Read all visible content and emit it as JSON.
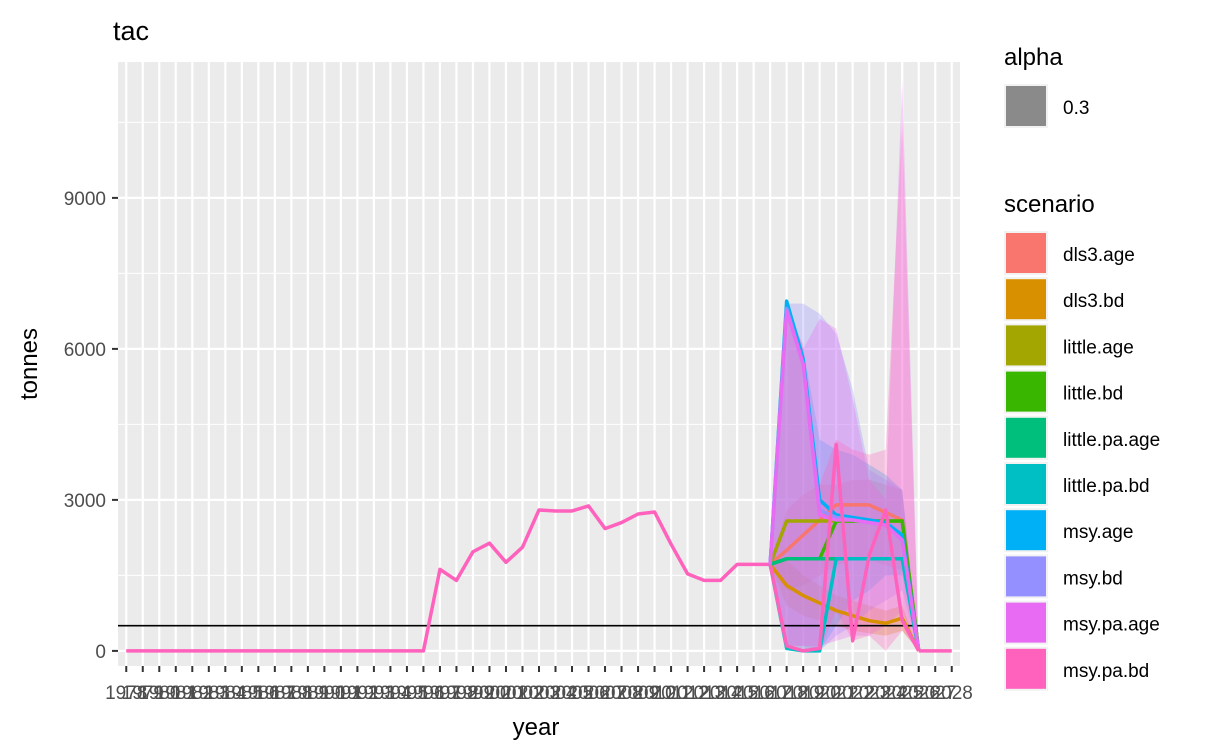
{
  "chart_data": {
    "type": "line",
    "title": "tac",
    "xlabel": "year",
    "ylabel": "tonnes",
    "xlim": [
      1978,
      2028
    ],
    "ylim": [
      -300,
      11700
    ],
    "yticks": [
      0,
      3000,
      6000,
      9000
    ],
    "xtick_labels": [
      "1978",
      "1979",
      "1980",
      "1981",
      "1982",
      "1983",
      "1984",
      "1985",
      "1986",
      "1987",
      "1988",
      "1989",
      "1990",
      "1991",
      "1992",
      "1993",
      "1994",
      "1995",
      "1996",
      "1997",
      "1998",
      "1999",
      "2000",
      "2001",
      "2002",
      "2003",
      "2004",
      "2005",
      "2006",
      "2007",
      "2008",
      "2009",
      "2010",
      "2011",
      "2012",
      "2013",
      "2014",
      "2015",
      "2016",
      "2017",
      "2018",
      "2019",
      "2020",
      "2021",
      "2022",
      "2023",
      "2024",
      "2025",
      "2026",
      "2027",
      "2028"
    ],
    "hline": 500,
    "grid": true,
    "legend_alpha": {
      "title": "alpha",
      "label": "0.3",
      "color": "#8a8a8a"
    },
    "legend_scenario_title": "scenario",
    "historical": {
      "years": [
        1978,
        1979,
        1980,
        1981,
        1982,
        1983,
        1984,
        1985,
        1986,
        1987,
        1988,
        1989,
        1990,
        1991,
        1992,
        1993,
        1994,
        1995,
        1996,
        1997,
        1998,
        1999,
        2000,
        2001,
        2002,
        2003,
        2004,
        2005,
        2006,
        2007,
        2008,
        2009,
        2010,
        2011,
        2012,
        2013,
        2014,
        2015,
        2016,
        2017
      ],
      "values": [
        0,
        0,
        0,
        0,
        0,
        0,
        0,
        0,
        0,
        0,
        0,
        0,
        0,
        0,
        0,
        0,
        0,
        0,
        0,
        1620,
        1400,
        1970,
        2140,
        1760,
        2060,
        2800,
        2780,
        2780,
        2880,
        2430,
        2550,
        2720,
        2760,
        2120,
        1530,
        1400,
        1400,
        1720,
        1720,
        1720
      ]
    },
    "series": [
      {
        "name": "dls3.age",
        "color": "#F8766D",
        "years": [
          2017,
          2018,
          2019,
          2020,
          2021,
          2022,
          2023,
          2024,
          2025,
          2026
        ],
        "values": [
          1720,
          2000,
          2300,
          2600,
          2900,
          2900,
          2900,
          2750,
          2600,
          0
        ],
        "lo": [
          1720,
          1200,
          1300,
          1500,
          1700,
          1800,
          1800,
          1700,
          1600,
          0
        ],
        "hi": [
          1720,
          2800,
          3100,
          3300,
          3300,
          3400,
          3400,
          3300,
          3200,
          0
        ]
      },
      {
        "name": "dls3.bd",
        "color": "#D89000",
        "years": [
          2017,
          2018,
          2019,
          2020,
          2021,
          2022,
          2023,
          2024,
          2025,
          2026
        ],
        "values": [
          1720,
          1300,
          1100,
          950,
          800,
          700,
          600,
          550,
          650,
          0
        ],
        "lo": [
          1720,
          900,
          700,
          600,
          500,
          400,
          350,
          300,
          400,
          0
        ],
        "hi": [
          1720,
          1800,
          1500,
          1300,
          1100,
          1000,
          900,
          800,
          900,
          0
        ]
      },
      {
        "name": "little.age",
        "color": "#A3A500",
        "years": [
          2017,
          2018,
          2019,
          2020,
          2021,
          2022,
          2023,
          2024,
          2025,
          2026
        ],
        "values": [
          1720,
          2580,
          2580,
          2580,
          2580,
          2580,
          2580,
          2580,
          2580,
          0
        ]
      },
      {
        "name": "little.bd",
        "color": "#39B600",
        "years": [
          2017,
          2018,
          2019,
          2020,
          2021,
          2022,
          2023,
          2024,
          2025,
          2026
        ],
        "values": [
          1720,
          1830,
          1830,
          1830,
          2580,
          2580,
          2580,
          2580,
          2580,
          0
        ]
      },
      {
        "name": "little.pa.age",
        "color": "#00BF7D",
        "years": [
          2017,
          2018,
          2019,
          2020,
          2021,
          2022,
          2023,
          2024,
          2025,
          2026
        ],
        "values": [
          1720,
          1830,
          1830,
          1830,
          1830,
          1830,
          1830,
          1830,
          1830,
          0
        ]
      },
      {
        "name": "little.pa.bd",
        "color": "#00BFC4",
        "years": [
          2017,
          2018,
          2019,
          2020,
          2021,
          2022,
          2023,
          2024,
          2025,
          2026
        ],
        "values": [
          1720,
          50,
          0,
          0,
          1830,
          1830,
          1830,
          1830,
          1830,
          0
        ]
      },
      {
        "name": "msy.age",
        "color": "#00B0F6",
        "years": [
          2017,
          2018,
          2019,
          2020,
          2021,
          2022,
          2023,
          2024,
          2025,
          2026
        ],
        "values": [
          1720,
          6950,
          5800,
          3000,
          2700,
          2650,
          2600,
          2550,
          2300,
          0
        ],
        "lo": [
          1720,
          100,
          0,
          0,
          500,
          1000,
          1200,
          1500,
          1500,
          0
        ],
        "hi": [
          1720,
          7000,
          6000,
          4200,
          4000,
          3900,
          3700,
          3500,
          3200,
          0
        ]
      },
      {
        "name": "msy.bd",
        "color": "#9590FF",
        "years": [
          2017,
          2018,
          2019,
          2020,
          2021,
          2022,
          2023,
          2024,
          2025,
          2026
        ],
        "values": [
          1720,
          6800,
          5700,
          2800,
          2650,
          2600,
          2550,
          2500,
          2200,
          0
        ],
        "lo": [
          1720,
          100,
          100,
          0,
          300,
          500,
          800,
          1000,
          1200,
          0
        ],
        "hi": [
          1720,
          6900,
          6900,
          6700,
          6300,
          5200,
          3600,
          3400,
          3200,
          0
        ]
      },
      {
        "name": "msy.pa.age",
        "color": "#E76BF3",
        "years": [
          2017,
          2018,
          2019,
          2020,
          2021,
          2022,
          2023,
          2024,
          2025,
          2026
        ],
        "values": [
          1720,
          6750,
          5700,
          2700,
          2600,
          2600,
          2550,
          2500,
          2200,
          0
        ],
        "lo": [
          1720,
          100,
          100,
          100,
          200,
          300,
          300,
          500,
          800,
          0
        ],
        "hi": [
          1720,
          6800,
          6000,
          6600,
          6400,
          5000,
          3400,
          3000,
          11300,
          0
        ]
      },
      {
        "name": "msy.pa.bd",
        "color": "#FF62BC",
        "years": [
          2017,
          2018,
          2019,
          2020,
          2021,
          2022,
          2023,
          2024,
          2025,
          2026
        ],
        "values": [
          1720,
          100,
          0,
          50,
          4100,
          200,
          1900,
          2800,
          600,
          0
        ],
        "lo": [
          1720,
          50,
          0,
          0,
          800,
          200,
          300,
          0,
          400,
          0
        ],
        "hi": [
          1720,
          6700,
          6100,
          3300,
          4200,
          4000,
          3900,
          4000,
          10500,
          0
        ]
      }
    ],
    "post_years": [
      2026,
      2027,
      2028
    ],
    "post_values": [
      0,
      0,
      0
    ]
  }
}
